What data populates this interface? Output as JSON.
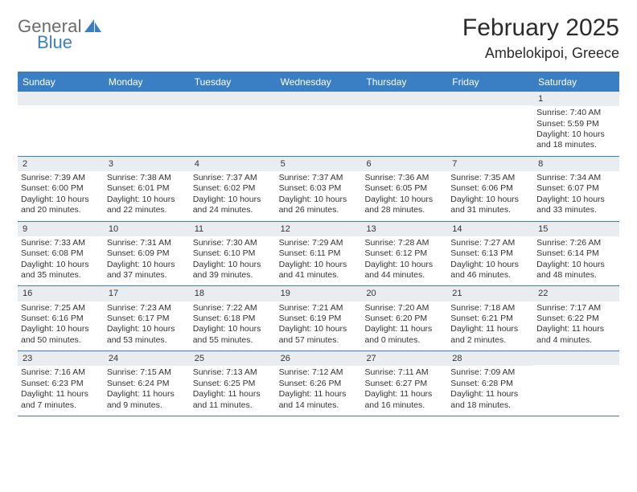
{
  "brand": {
    "top": "General",
    "bottom": "Blue",
    "logo_color": "#3a7fc4",
    "text_gray": "#6b6b6b"
  },
  "title": "February 2025",
  "location": "Ambelokipoi, Greece",
  "colors": {
    "header_bg": "#3a7fc4",
    "header_text": "#ffffff",
    "daynum_bg": "#e9edef",
    "rule": "#3a7fc4",
    "body_text": "#333333"
  },
  "typography": {
    "title_size": 30,
    "location_size": 18,
    "day_header_size": 12,
    "cell_size": 10.5
  },
  "day_names": [
    "Sunday",
    "Monday",
    "Tuesday",
    "Wednesday",
    "Thursday",
    "Friday",
    "Saturday"
  ],
  "weeks": [
    [
      {},
      {},
      {},
      {},
      {},
      {},
      {
        "n": "1",
        "sunrise": "Sunrise: 7:40 AM",
        "sunset": "Sunset: 5:59 PM",
        "daylight": "Daylight: 10 hours and 18 minutes."
      }
    ],
    [
      {
        "n": "2",
        "sunrise": "Sunrise: 7:39 AM",
        "sunset": "Sunset: 6:00 PM",
        "daylight": "Daylight: 10 hours and 20 minutes."
      },
      {
        "n": "3",
        "sunrise": "Sunrise: 7:38 AM",
        "sunset": "Sunset: 6:01 PM",
        "daylight": "Daylight: 10 hours and 22 minutes."
      },
      {
        "n": "4",
        "sunrise": "Sunrise: 7:37 AM",
        "sunset": "Sunset: 6:02 PM",
        "daylight": "Daylight: 10 hours and 24 minutes."
      },
      {
        "n": "5",
        "sunrise": "Sunrise: 7:37 AM",
        "sunset": "Sunset: 6:03 PM",
        "daylight": "Daylight: 10 hours and 26 minutes."
      },
      {
        "n": "6",
        "sunrise": "Sunrise: 7:36 AM",
        "sunset": "Sunset: 6:05 PM",
        "daylight": "Daylight: 10 hours and 28 minutes."
      },
      {
        "n": "7",
        "sunrise": "Sunrise: 7:35 AM",
        "sunset": "Sunset: 6:06 PM",
        "daylight": "Daylight: 10 hours and 31 minutes."
      },
      {
        "n": "8",
        "sunrise": "Sunrise: 7:34 AM",
        "sunset": "Sunset: 6:07 PM",
        "daylight": "Daylight: 10 hours and 33 minutes."
      }
    ],
    [
      {
        "n": "9",
        "sunrise": "Sunrise: 7:33 AM",
        "sunset": "Sunset: 6:08 PM",
        "daylight": "Daylight: 10 hours and 35 minutes."
      },
      {
        "n": "10",
        "sunrise": "Sunrise: 7:31 AM",
        "sunset": "Sunset: 6:09 PM",
        "daylight": "Daylight: 10 hours and 37 minutes."
      },
      {
        "n": "11",
        "sunrise": "Sunrise: 7:30 AM",
        "sunset": "Sunset: 6:10 PM",
        "daylight": "Daylight: 10 hours and 39 minutes."
      },
      {
        "n": "12",
        "sunrise": "Sunrise: 7:29 AM",
        "sunset": "Sunset: 6:11 PM",
        "daylight": "Daylight: 10 hours and 41 minutes."
      },
      {
        "n": "13",
        "sunrise": "Sunrise: 7:28 AM",
        "sunset": "Sunset: 6:12 PM",
        "daylight": "Daylight: 10 hours and 44 minutes."
      },
      {
        "n": "14",
        "sunrise": "Sunrise: 7:27 AM",
        "sunset": "Sunset: 6:13 PM",
        "daylight": "Daylight: 10 hours and 46 minutes."
      },
      {
        "n": "15",
        "sunrise": "Sunrise: 7:26 AM",
        "sunset": "Sunset: 6:14 PM",
        "daylight": "Daylight: 10 hours and 48 minutes."
      }
    ],
    [
      {
        "n": "16",
        "sunrise": "Sunrise: 7:25 AM",
        "sunset": "Sunset: 6:16 PM",
        "daylight": "Daylight: 10 hours and 50 minutes."
      },
      {
        "n": "17",
        "sunrise": "Sunrise: 7:23 AM",
        "sunset": "Sunset: 6:17 PM",
        "daylight": "Daylight: 10 hours and 53 minutes."
      },
      {
        "n": "18",
        "sunrise": "Sunrise: 7:22 AM",
        "sunset": "Sunset: 6:18 PM",
        "daylight": "Daylight: 10 hours and 55 minutes."
      },
      {
        "n": "19",
        "sunrise": "Sunrise: 7:21 AM",
        "sunset": "Sunset: 6:19 PM",
        "daylight": "Daylight: 10 hours and 57 minutes."
      },
      {
        "n": "20",
        "sunrise": "Sunrise: 7:20 AM",
        "sunset": "Sunset: 6:20 PM",
        "daylight": "Daylight: 11 hours and 0 minutes."
      },
      {
        "n": "21",
        "sunrise": "Sunrise: 7:18 AM",
        "sunset": "Sunset: 6:21 PM",
        "daylight": "Daylight: 11 hours and 2 minutes."
      },
      {
        "n": "22",
        "sunrise": "Sunrise: 7:17 AM",
        "sunset": "Sunset: 6:22 PM",
        "daylight": "Daylight: 11 hours and 4 minutes."
      }
    ],
    [
      {
        "n": "23",
        "sunrise": "Sunrise: 7:16 AM",
        "sunset": "Sunset: 6:23 PM",
        "daylight": "Daylight: 11 hours and 7 minutes."
      },
      {
        "n": "24",
        "sunrise": "Sunrise: 7:15 AM",
        "sunset": "Sunset: 6:24 PM",
        "daylight": "Daylight: 11 hours and 9 minutes."
      },
      {
        "n": "25",
        "sunrise": "Sunrise: 7:13 AM",
        "sunset": "Sunset: 6:25 PM",
        "daylight": "Daylight: 11 hours and 11 minutes."
      },
      {
        "n": "26",
        "sunrise": "Sunrise: 7:12 AM",
        "sunset": "Sunset: 6:26 PM",
        "daylight": "Daylight: 11 hours and 14 minutes."
      },
      {
        "n": "27",
        "sunrise": "Sunrise: 7:11 AM",
        "sunset": "Sunset: 6:27 PM",
        "daylight": "Daylight: 11 hours and 16 minutes."
      },
      {
        "n": "28",
        "sunrise": "Sunrise: 7:09 AM",
        "sunset": "Sunset: 6:28 PM",
        "daylight": "Daylight: 11 hours and 18 minutes."
      },
      {}
    ]
  ]
}
